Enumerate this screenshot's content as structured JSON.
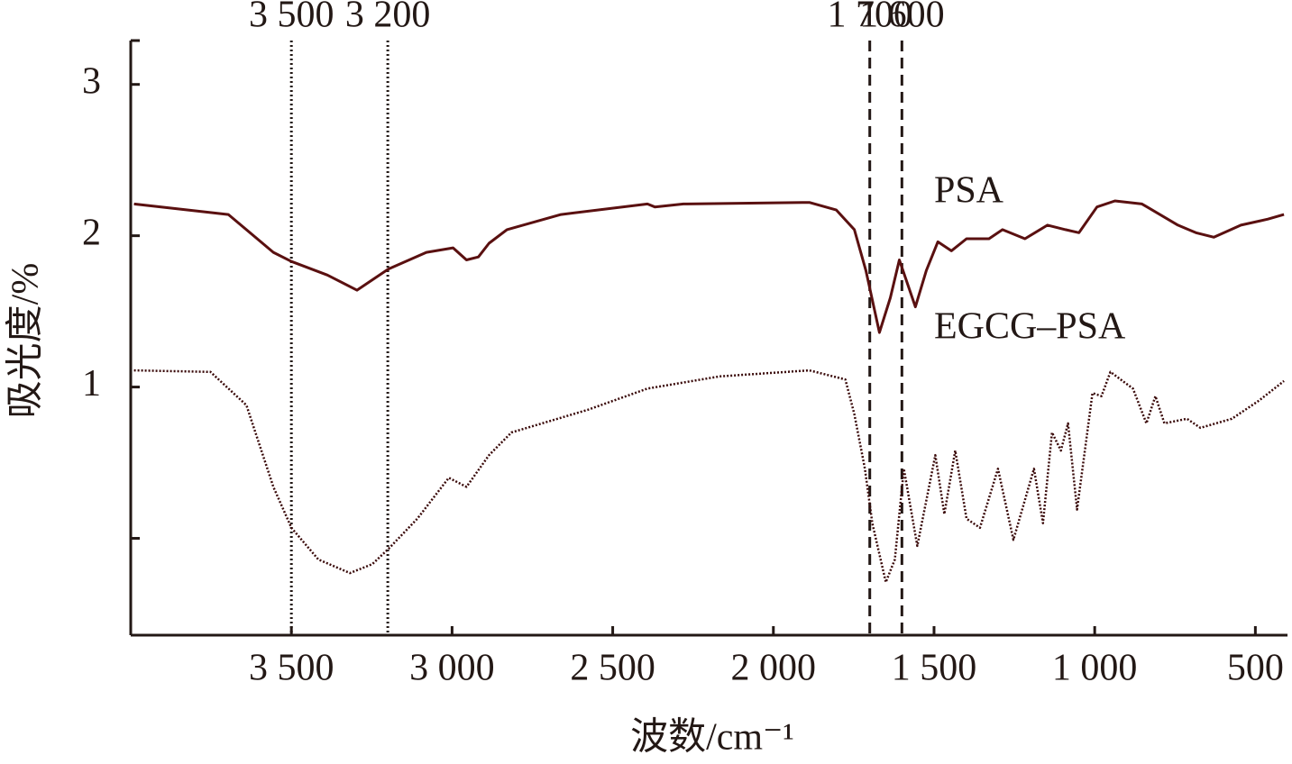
{
  "chart_data": {
    "type": "line",
    "x_label": "波数/cm⁻¹",
    "y_label": "吸光度/%",
    "xlim": [
      4000,
      400
    ],
    "ylim": [
      -0.64,
      3.29
    ],
    "xticks": [
      {
        "value": 3500,
        "label": "3 500"
      },
      {
        "value": 3000,
        "label": "3 000"
      },
      {
        "value": 2500,
        "label": "2 500"
      },
      {
        "value": 2000,
        "label": "2 000"
      },
      {
        "value": 1500,
        "label": "1 500"
      },
      {
        "value": 1000,
        "label": "1 000"
      },
      {
        "value": 500,
        "label": "500"
      }
    ],
    "yticks": [
      1,
      2,
      3
    ],
    "minor_yticks": [
      0
    ],
    "reference_lines": [
      {
        "value": 3500,
        "label": "3 500",
        "style": "dotted"
      },
      {
        "value": 3200,
        "label": "3 200",
        "style": "dotted"
      },
      {
        "value": 1700,
        "label": "1 700",
        "style": "dashed"
      },
      {
        "value": 1600,
        "label": "1 600",
        "style": "dashed"
      }
    ],
    "annotations": [
      {
        "text": "PSA",
        "x": 1500,
        "y": 2.28
      },
      {
        "text": "EGCG–PSA",
        "x": 1500,
        "y": 1.38
      }
    ],
    "series": [
      {
        "name": "PSA",
        "color": "#5a1010",
        "style": "solid",
        "x": [
          3990,
          3696,
          3556,
          3500,
          3388,
          3296,
          3198,
          3080,
          2997,
          2955,
          2918,
          2885,
          2829,
          2661,
          2392,
          2369,
          2280,
          1888,
          1804,
          1748,
          1712,
          1670,
          1636,
          1608,
          1558,
          1524,
          1488,
          1446,
          1399,
          1329,
          1287,
          1217,
          1147,
          1091,
          1049,
          993,
          937,
          853,
          741,
          685,
          629,
          545,
          461,
          411
        ],
        "values": [
          2.21,
          2.14,
          1.89,
          1.83,
          1.74,
          1.64,
          1.78,
          1.89,
          1.92,
          1.84,
          1.86,
          1.95,
          2.04,
          2.14,
          2.21,
          2.19,
          2.21,
          2.22,
          2.17,
          2.04,
          1.77,
          1.36,
          1.59,
          1.84,
          1.53,
          1.77,
          1.96,
          1.9,
          1.98,
          1.98,
          2.04,
          1.98,
          2.07,
          2.04,
          2.02,
          2.19,
          2.23,
          2.21,
          2.07,
          2.02,
          1.99,
          2.07,
          2.11,
          2.14
        ]
      },
      {
        "name": "EGCG–PSA",
        "color": "#3a0a0a",
        "style": "dotted",
        "x": [
          3990,
          3752,
          3640,
          3556,
          3500,
          3416,
          3318,
          3248,
          3198,
          3108,
          3010,
          2955,
          2885,
          2815,
          2577,
          2392,
          2168,
          1888,
          1776,
          1748,
          1715,
          1692,
          1650,
          1622,
          1594,
          1552,
          1496,
          1468,
          1434,
          1399,
          1357,
          1301,
          1253,
          1189,
          1161,
          1133,
          1105,
          1083,
          1055,
          1007,
          979,
          951,
          881,
          839,
          811,
          783,
          713,
          671,
          573,
          489,
          411
        ],
        "values": [
          1.11,
          1.1,
          0.88,
          0.34,
          0.07,
          -0.14,
          -0.23,
          -0.17,
          -0.07,
          0.13,
          0.4,
          0.34,
          0.55,
          0.7,
          0.85,
          0.99,
          1.07,
          1.11,
          1.05,
          0.82,
          0.46,
          0.1,
          -0.29,
          -0.14,
          0.46,
          -0.05,
          0.55,
          0.16,
          0.58,
          0.13,
          0.07,
          0.46,
          -0.01,
          0.46,
          0.1,
          0.7,
          0.58,
          0.76,
          0.19,
          0.96,
          0.94,
          1.1,
          0.99,
          0.76,
          0.94,
          0.76,
          0.79,
          0.73,
          0.79,
          0.91,
          1.04
        ]
      }
    ]
  }
}
